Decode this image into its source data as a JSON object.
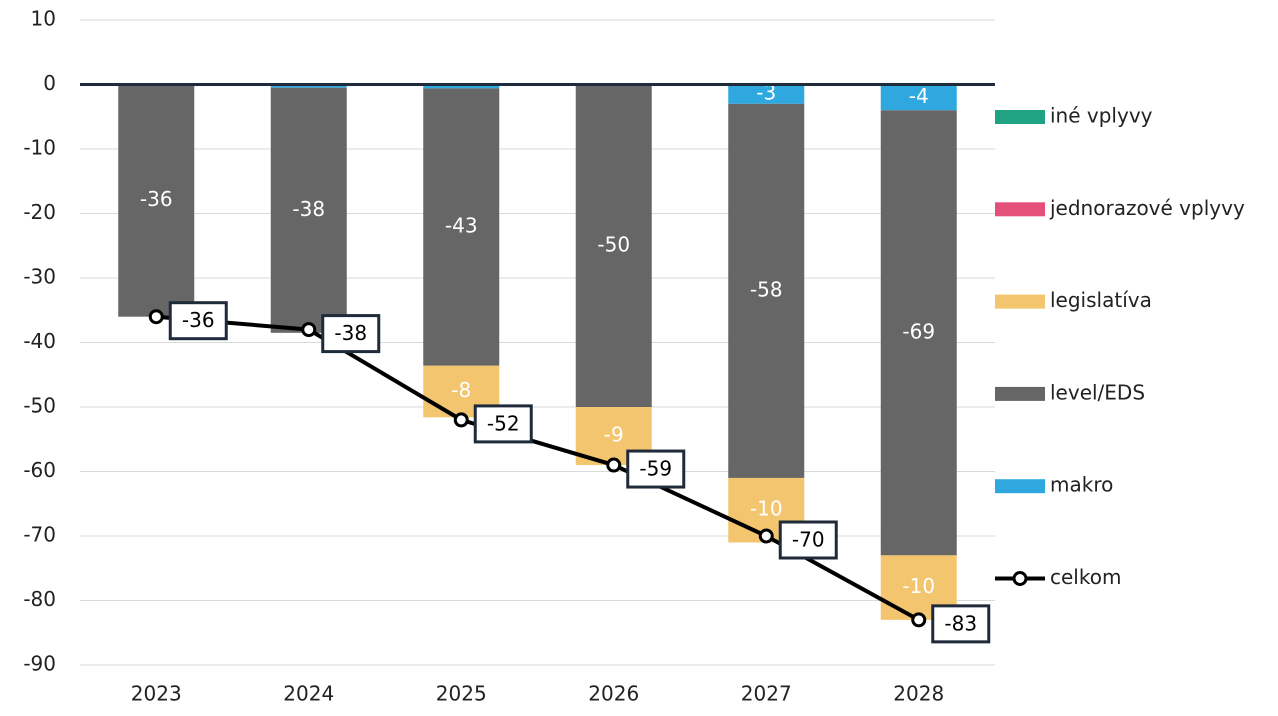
{
  "chart_data": {
    "type": "bar",
    "categories": [
      "2023",
      "2024",
      "2025",
      "2026",
      "2027",
      "2028"
    ],
    "series": [
      {
        "name": "iné vplyvy",
        "color": "#1fa383",
        "values": [
          0,
          0,
          0,
          0,
          0,
          0
        ]
      },
      {
        "name": "jednorazové vplyvy",
        "color": "#e5507a",
        "values": [
          0,
          0,
          0,
          0,
          0,
          0
        ]
      },
      {
        "name": "legislatíva",
        "color": "#f3c56e",
        "values": [
          0,
          0,
          -8,
          -9,
          -10,
          -10
        ]
      },
      {
        "name": "level/EDS",
        "color": "#666666",
        "values": [
          -36,
          -38,
          -43,
          -50,
          -58,
          -69
        ]
      },
      {
        "name": "makro",
        "color": "#2fa8e0",
        "values": [
          0,
          -0.5,
          -0.6,
          0,
          -3,
          -4
        ]
      },
      {
        "name": "celkom",
        "color": "#000000",
        "type": "line",
        "values": [
          -36,
          -38,
          -52,
          -59,
          -70,
          -83
        ]
      }
    ],
    "ylim": [
      -90,
      10
    ],
    "yticks": [
      10,
      0,
      -10,
      -20,
      -30,
      -40,
      -50,
      -60,
      -70,
      -80,
      -90
    ],
    "grid": true,
    "legend": "right"
  }
}
